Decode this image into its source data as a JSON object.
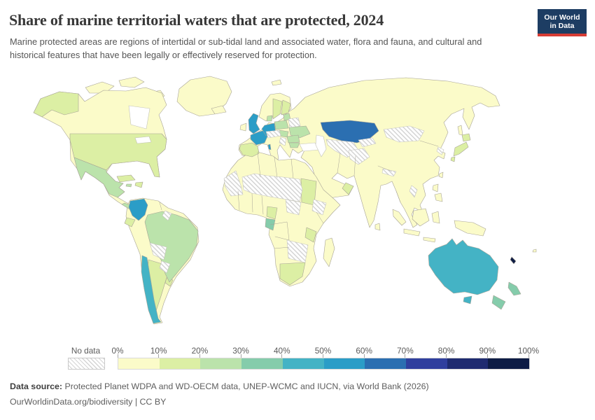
{
  "header": {
    "title": "Share of marine territorial waters that are protected, 2024",
    "subtitle": "Marine protected areas are regions of intertidal or sub-tidal land and associated water, flora and fauna, and cultural and historical features that have been legally or effectively reserved for protection.",
    "logo_line1": "Our World",
    "logo_line2": "in Data"
  },
  "legend": {
    "no_data_label": "No data",
    "ticks": [
      "0%",
      "10%",
      "20%",
      "30%",
      "40%",
      "50%",
      "60%",
      "70%",
      "80%",
      "90%",
      "100%"
    ]
  },
  "footer": {
    "source_label": "Data source:",
    "source_text": " Protected Planet WDPA and WD-OECM data, UNEP-WCMC and IUCN, via World Bank (2026)",
    "note": "OurWorldinData.org/biodiversity | CC BY"
  },
  "colors": {
    "logo_bg": "#1d3d63",
    "logo_red": "#d73c34",
    "country_border": "#a7a396",
    "water_border": "#c2c2b8",
    "hatch_line": "#d2d2d2",
    "hatch_border": "#c6c6c0"
  },
  "chart_data": {
    "type": "choropleth_map",
    "title": "Share of marine territorial waters that are protected",
    "year": 2024,
    "unit": "%",
    "projection": "world",
    "legend_position": "bottom",
    "no_data_label": "No data",
    "bins": [
      {
        "range": "0-10%",
        "color": "#fbfbc9"
      },
      {
        "range": "10-20%",
        "color": "#dcefa4"
      },
      {
        "range": "20-30%",
        "color": "#bbe3ab"
      },
      {
        "range": "30-40%",
        "color": "#85ccab"
      },
      {
        "range": "40-50%",
        "color": "#44b3c5"
      },
      {
        "range": "50-60%",
        "color": "#2b9dc7"
      },
      {
        "range": "60-70%",
        "color": "#2b6fb1"
      },
      {
        "range": "70-80%",
        "color": "#303f9e"
      },
      {
        "range": "80-90%",
        "color": "#1f2b70"
      },
      {
        "range": "90-100%",
        "color": "#0e1c45"
      }
    ],
    "values_by_bin": {
      "0-10%": [
        "Canada",
        "Greenland",
        "Russia",
        "China",
        "India",
        "Peru",
        "Venezuela",
        "Norway",
        "Iceland",
        "Ireland",
        "Italy",
        "Greece",
        "Turkey",
        "Saudi Arabia",
        "Iran",
        "Egypt",
        "Algeria",
        "Libya",
        "Morocco",
        "Nigeria",
        "Angola",
        "Namibia",
        "Mozambique",
        "Somalia",
        "Kenya",
        "Madagascar",
        "Indonesia",
        "Philippines",
        "Papua New Guinea",
        "Myanmar",
        "Thailand",
        "Vietnam",
        "Malaysia",
        "Sri Lanka"
      ],
      "10-20%": [
        "United States",
        "Cuba",
        "Dominican Republic",
        "Ecuador",
        "Argentina",
        "Uruguay",
        "Spain",
        "Portugal",
        "Sweden",
        "Finland",
        "Japan",
        "Oman",
        "Sudan",
        "Cameroon",
        "Tanzania",
        "South Africa"
      ],
      "20-30%": [
        "Mexico",
        "Panama",
        "Costa Rica",
        "Jamaica",
        "Brazil",
        "Poland",
        "Estonia",
        "Latvia",
        "Lithuania",
        "Ukraine",
        "Hungary",
        "Slovakia",
        "Romania",
        "Bulgaria",
        "Denmark"
      ],
      "30-40%": [
        "Gabon",
        "New Zealand"
      ],
      "40-50%": [
        "Chile",
        "Australia"
      ],
      "50-60%": [
        "Colombia",
        "United Kingdom",
        "France",
        "Germany",
        "Netherlands",
        "Belgium"
      ],
      "60-70%": [
        "Kazakhstan"
      ],
      "90-100%": [
        "New Caledonia"
      ],
      "No data": [
        "Bolivia",
        "Paraguay",
        "French Guiana",
        "Guyana",
        "Belarus",
        "Czechia",
        "Austria",
        "Switzerland",
        "Serbia",
        "Mongolia",
        "Uzbekistan",
        "Turkmenistan",
        "Kyrgyzstan",
        "Tajikistan",
        "Afghanistan",
        "Nepal",
        "Laos",
        "North Korea",
        "Western Sahara",
        "Mauritania",
        "Mali",
        "Niger",
        "Chad",
        "Ethiopia",
        "South Sudan",
        "Central African Republic",
        "Zambia",
        "Zimbabwe",
        "Botswana"
      ]
    }
  }
}
